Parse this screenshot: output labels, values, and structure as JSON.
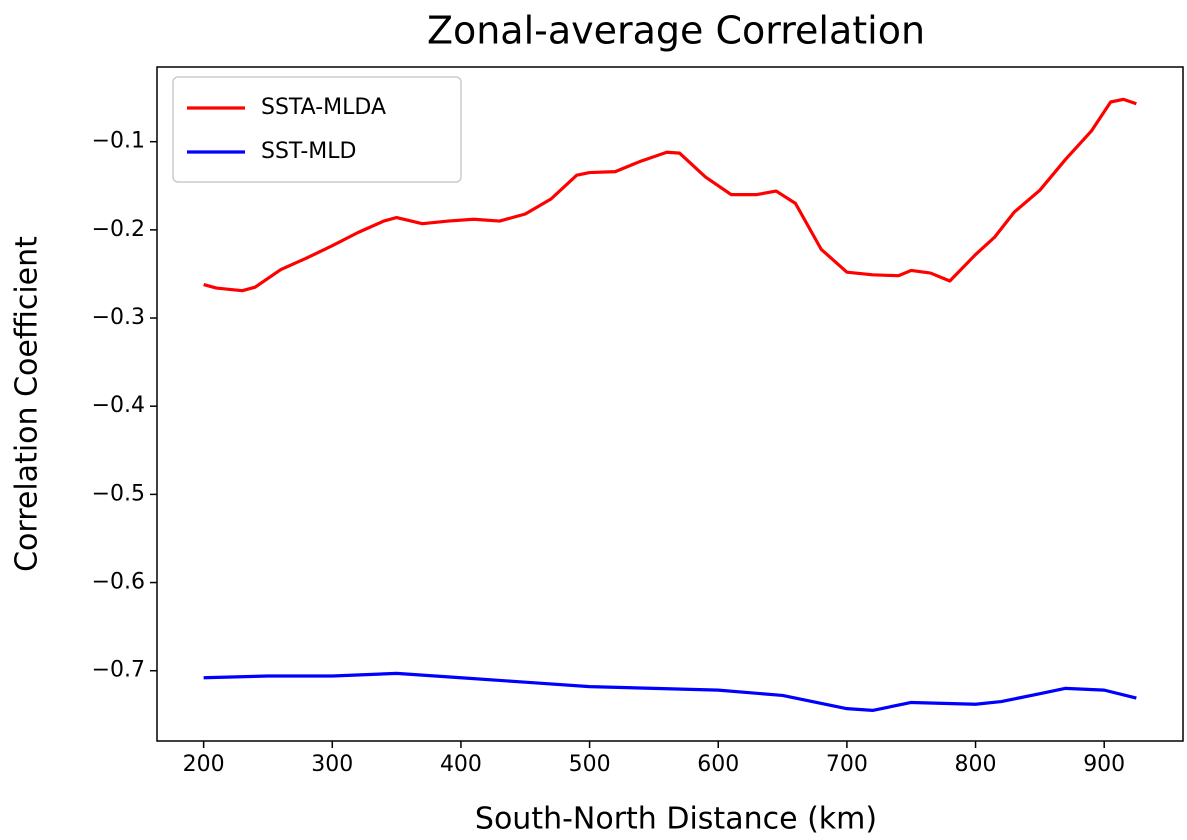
{
  "chart_data": {
    "type": "line",
    "title": "Zonal-average Correlation",
    "xlabel": "South-North Distance (km)",
    "ylabel": "Correlation Coefficient",
    "xlim": [
      163.75,
      961.25
    ],
    "ylim": [
      -0.7797,
      -0.0153
    ],
    "xticks": [
      200,
      300,
      400,
      500,
      600,
      700,
      800,
      900
    ],
    "yticks": [
      {
        "value": -0.7,
        "label": "−0.7"
      },
      {
        "value": -0.6,
        "label": "−0.6"
      },
      {
        "value": -0.5,
        "label": "−0.5"
      },
      {
        "value": -0.4,
        "label": "−0.4"
      },
      {
        "value": -0.3,
        "label": "−0.3"
      },
      {
        "value": -0.2,
        "label": "−0.2"
      },
      {
        "value": -0.1,
        "label": "−0.1"
      }
    ],
    "legend": "upper-left",
    "grid": false,
    "series": [
      {
        "name": "SSTA-MLDA",
        "color": "#ff0000",
        "x": [
          200,
          210,
          230,
          240,
          260,
          280,
          300,
          320,
          340,
          350,
          370,
          390,
          410,
          430,
          450,
          470,
          490,
          500,
          520,
          540,
          560,
          570,
          590,
          610,
          630,
          645,
          660,
          680,
          700,
          720,
          740,
          750,
          765,
          780,
          800,
          815,
          830,
          850,
          870,
          890,
          905,
          915,
          925
        ],
        "values": [
          -0.262,
          -0.266,
          -0.269,
          -0.265,
          -0.245,
          -0.232,
          -0.218,
          -0.203,
          -0.19,
          -0.186,
          -0.193,
          -0.19,
          -0.188,
          -0.19,
          -0.182,
          -0.165,
          -0.138,
          -0.135,
          -0.134,
          -0.122,
          -0.112,
          -0.113,
          -0.14,
          -0.16,
          -0.16,
          -0.156,
          -0.17,
          -0.222,
          -0.248,
          -0.251,
          -0.252,
          -0.246,
          -0.249,
          -0.258,
          -0.228,
          -0.208,
          -0.18,
          -0.155,
          -0.12,
          -0.088,
          -0.055,
          -0.052,
          -0.057
        ]
      },
      {
        "name": "SST-MLD",
        "color": "#0000ff",
        "x": [
          200,
          250,
          300,
          350,
          400,
          450,
          500,
          550,
          600,
          650,
          700,
          720,
          750,
          800,
          820,
          850,
          870,
          900,
          925
        ],
        "values": [
          -0.708,
          -0.706,
          -0.706,
          -0.703,
          -0.708,
          -0.713,
          -0.718,
          -0.72,
          -0.722,
          -0.728,
          -0.743,
          -0.745,
          -0.736,
          -0.738,
          -0.735,
          -0.726,
          -0.72,
          -0.722,
          -0.731
        ]
      }
    ]
  }
}
